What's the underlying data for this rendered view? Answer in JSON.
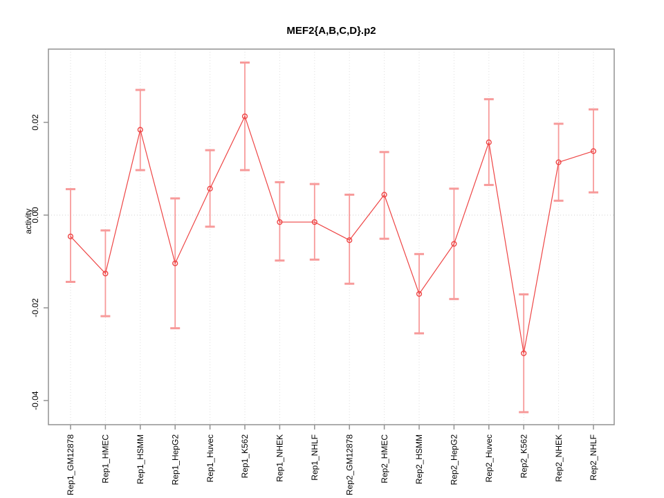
{
  "page": {
    "background": "#ffffff"
  },
  "chart_data": {
    "type": "line",
    "title": "MEF2{A,B,C,D}.p2",
    "ylabel": "activity",
    "xlabel": "",
    "categories": [
      "Rep1_GM12878",
      "Rep1_HMEC",
      "Rep1_HSMM",
      "Rep1_HepG2",
      "Rep1_Huvec",
      "Rep1_K562",
      "Rep1_NHEK",
      "Rep1_NHLF",
      "Rep2_GM12878",
      "Rep2_HMEC",
      "Rep2_HSMM",
      "Rep2_HepG2",
      "Rep2_Huvec",
      "Rep2_K562",
      "Rep2_NHEK",
      "Rep2_NHLF"
    ],
    "series": [
      {
        "name": "activity",
        "marker": "open-circle",
        "color": "#ee4444",
        "errorbar_color": "#f79a9a",
        "values": [
          -0.0046,
          -0.0126,
          0.0184,
          -0.0104,
          0.0057,
          0.0213,
          -0.0015,
          -0.0015,
          -0.0054,
          0.0044,
          -0.017,
          -0.0062,
          0.0157,
          -0.0298,
          0.0114,
          0.0138
        ],
        "error_low": [
          -0.0144,
          -0.0218,
          0.0097,
          -0.0244,
          -0.0025,
          0.0097,
          -0.0098,
          -0.0096,
          -0.0148,
          -0.0051,
          -0.0255,
          -0.0181,
          0.0065,
          -0.0425,
          0.0031,
          0.0049
        ],
        "error_high": [
          0.0056,
          -0.0033,
          0.027,
          0.0036,
          0.014,
          0.0329,
          0.0071,
          0.0067,
          0.0044,
          0.0136,
          -0.0084,
          0.0057,
          0.025,
          -0.0171,
          0.0197,
          0.0228
        ]
      }
    ],
    "ylim": [
      -0.0452,
      0.0358
    ],
    "yticks": [
      -0.04,
      -0.02,
      0,
      0.02
    ],
    "ytick_labels": [
      "-0.04",
      "-0.02",
      "0.00",
      "0.02"
    ],
    "grid": "vertical-dotted-per-category",
    "zero_line": true,
    "legend": "none",
    "frame_color": "#919191",
    "grid_color": "#dedede",
    "zero_line_color": "#d2d2d2",
    "text_color": "#000000"
  }
}
